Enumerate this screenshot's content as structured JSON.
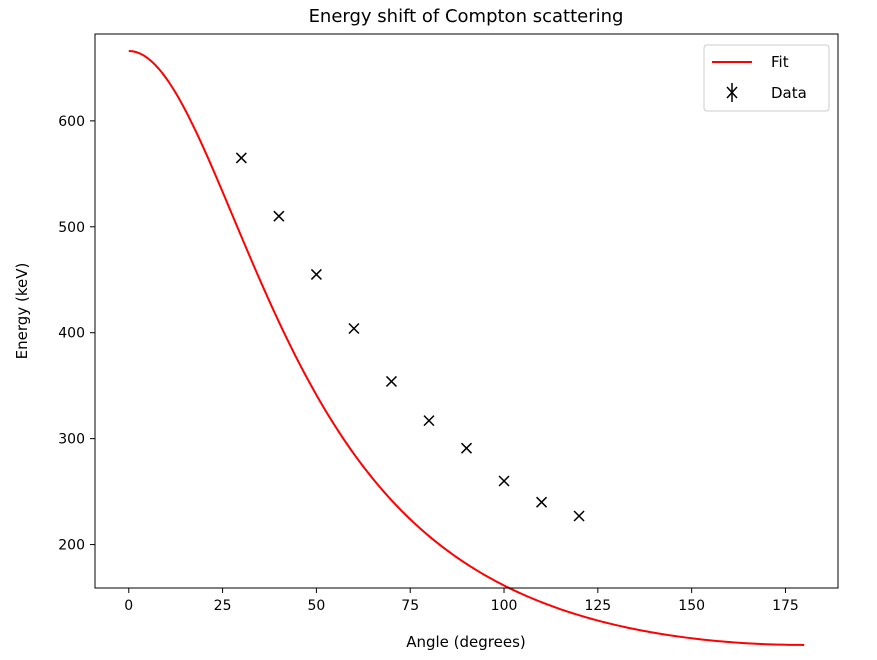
{
  "chart_data": {
    "type": "line",
    "title": "Energy shift of Compton scattering",
    "xlabel": "Angle (degrees)",
    "ylabel": "Energy (keV)",
    "xlim": [
      -9,
      189
    ],
    "ylim": [
      159,
      682
    ],
    "xticks": [
      0,
      25,
      50,
      75,
      100,
      125,
      150,
      175
    ],
    "yticks": [
      200,
      300,
      400,
      500,
      600
    ],
    "grid": false,
    "legend_position": "top-right",
    "series": [
      {
        "name": "Fit",
        "kind": "line",
        "color": "#ff0000",
        "model": "compton",
        "E0": 666,
        "mec2": 250,
        "x_range": [
          0,
          180
        ]
      },
      {
        "name": "Data",
        "kind": "errorbar-markers",
        "color": "#000000",
        "marker": "x",
        "x": [
          30,
          40,
          50,
          60,
          70,
          80,
          90,
          100,
          110,
          120
        ],
        "y": [
          565,
          510,
          455,
          404,
          354,
          317,
          291,
          260,
          240,
          227
        ]
      }
    ]
  }
}
